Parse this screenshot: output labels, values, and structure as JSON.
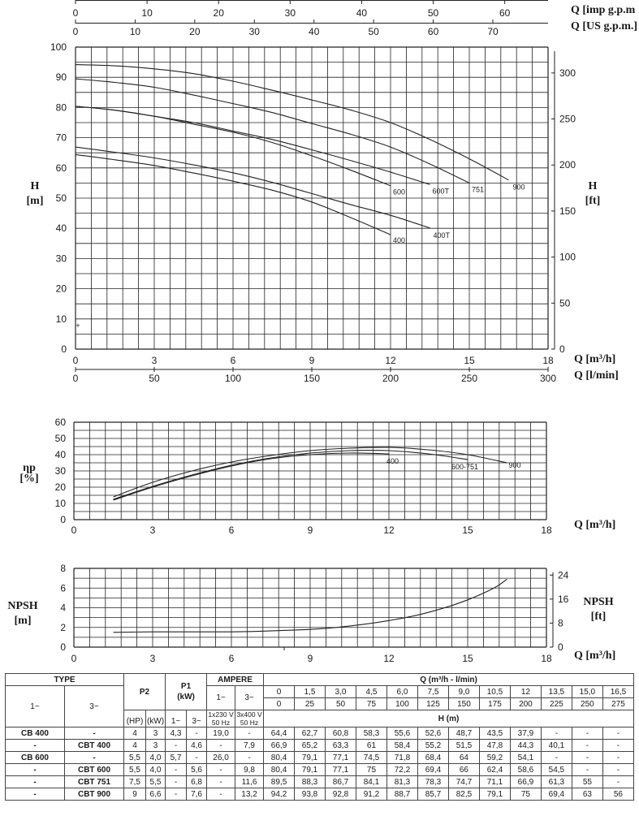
{
  "chart_data": [
    {
      "type": "line",
      "name": "head",
      "x_min": 0,
      "x_max": 18,
      "y_min": 0,
      "y_max": 100,
      "ylabel": "H",
      "ylabel_unit": "[m]",
      "yright_label": "H",
      "yright_unit": "[ft]",
      "top_axis_1": {
        "label": "Q [imp g.p.m",
        "ticks": [
          0,
          10,
          20,
          30,
          40,
          50,
          60
        ]
      },
      "top_axis_2": {
        "label": "Q [US g.p.m.]",
        "ticks": [
          0,
          10,
          20,
          30,
          40,
          50,
          60,
          70
        ]
      },
      "bottom_axis_1": {
        "label": "Q [m³/h]",
        "ticks": [
          0,
          3,
          6,
          9,
          12,
          15,
          18
        ]
      },
      "bottom_axis_2": {
        "label": "Q [l/min]",
        "ticks": [
          0,
          50,
          100,
          150,
          200,
          250,
          300
        ]
      },
      "yticks": [
        0,
        10,
        20,
        30,
        40,
        50,
        60,
        70,
        80,
        90,
        100
      ],
      "yright_ticks": [
        0,
        50,
        100,
        150,
        200,
        250,
        300
      ],
      "marker": "+",
      "series": [
        {
          "name": "400",
          "x": [
            0,
            1.5,
            3,
            4.5,
            6,
            7.5,
            9,
            10.5,
            12
          ],
          "y": [
            64.4,
            62.7,
            60.8,
            58.3,
            55.6,
            52.6,
            48.7,
            43.5,
            37.9
          ]
        },
        {
          "name": "400T",
          "x": [
            0,
            1.5,
            3,
            4.5,
            6,
            7.5,
            9,
            10.5,
            12,
            13.5
          ],
          "y": [
            66.9,
            65.2,
            63.3,
            61,
            58.4,
            55.2,
            51.5,
            47.8,
            44.3,
            40.1
          ]
        },
        {
          "name": "600",
          "x": [
            0,
            1.5,
            3,
            4.5,
            6,
            7.5,
            9,
            10.5,
            12
          ],
          "y": [
            80.4,
            79.1,
            77.1,
            74.5,
            71.8,
            68.4,
            64,
            59.2,
            54.1
          ]
        },
        {
          "name": "600T",
          "x": [
            0,
            1.5,
            3,
            4.5,
            6,
            7.5,
            9,
            10.5,
            12,
            13.5
          ],
          "y": [
            80.4,
            79.1,
            77.1,
            75,
            72.2,
            69.4,
            66,
            62.4,
            58.6,
            54.5
          ]
        },
        {
          "name": "751",
          "x": [
            0,
            1.5,
            3,
            4.5,
            6,
            7.5,
            9,
            10.5,
            12,
            13.5,
            15
          ],
          "y": [
            89.5,
            88.3,
            86.7,
            84.1,
            81.3,
            78.3,
            74.7,
            71.1,
            66.9,
            61.3,
            55
          ]
        },
        {
          "name": "900",
          "x": [
            0,
            1.5,
            3,
            4.5,
            6,
            7.5,
            9,
            10.5,
            12,
            13.5,
            15,
            16.5
          ],
          "y": [
            94.2,
            93.8,
            92.8,
            91.2,
            88.7,
            85.7,
            82.5,
            79.1,
            75,
            69.4,
            63,
            56
          ]
        }
      ]
    },
    {
      "type": "line",
      "name": "efficiency",
      "x_min": 0,
      "x_max": 18,
      "y_min": 0,
      "y_max": 60,
      "ylabel": "ηp",
      "ylabel_unit": "[%]",
      "xlabel": "Q [m³/h]",
      "xticks": [
        0,
        3,
        6,
        9,
        12,
        15,
        18
      ],
      "yticks": [
        0,
        10,
        20,
        30,
        40,
        50,
        60
      ],
      "series": [
        {
          "name": "400",
          "x": [
            1.5,
            3,
            4.5,
            6,
            7.5,
            9,
            10.5,
            12
          ],
          "y": [
            12,
            20,
            27,
            33,
            37.5,
            40,
            41,
            40.5
          ]
        },
        {
          "name": "600-751",
          "x": [
            1.5,
            3,
            4.5,
            6,
            7.5,
            9,
            10.5,
            12,
            13.5,
            15
          ],
          "y": [
            12.5,
            20.5,
            27.5,
            33.5,
            38,
            41,
            42.5,
            42.5,
            40.5,
            37
          ]
        },
        {
          "name": "900",
          "x": [
            1.5,
            3,
            4.5,
            6,
            7.5,
            9,
            10.5,
            12,
            13.5,
            15,
            16.5
          ],
          "y": [
            14,
            23,
            30,
            35.5,
            39.5,
            42.5,
            44,
            44.5,
            43,
            40,
            35
          ]
        }
      ]
    },
    {
      "type": "line",
      "name": "npsh",
      "x_min": 0,
      "x_max": 18,
      "y_min": 0,
      "y_max": 8,
      "ylabel": "NPSH",
      "ylabel_unit": "[m]",
      "yright_label": "NPSH",
      "yright_unit": "[ft]",
      "xlabel": "Q [m³/h]",
      "xticks": [
        0,
        3,
        6,
        9,
        12,
        15,
        18
      ],
      "yticks": [
        0,
        2,
        4,
        6,
        8
      ],
      "yright_ticks": [
        0,
        8,
        16,
        24
      ],
      "series": [
        {
          "name": "NPSH",
          "x": [
            1.5,
            3,
            4.5,
            6,
            7,
            8,
            9,
            10,
            11,
            12,
            13,
            14,
            15,
            16,
            16.5
          ],
          "y": [
            1.5,
            1.55,
            1.55,
            1.55,
            1.6,
            1.7,
            1.8,
            2.0,
            2.3,
            2.7,
            3.2,
            3.9,
            4.8,
            6.0,
            6.9
          ]
        }
      ]
    }
  ],
  "table": {
    "hdr_type": "TYPE",
    "hdr_p2": "P2",
    "hdr_p1": "P1",
    "hdr_p1_unit": "(kW)",
    "hdr_ampere": "AMPERE",
    "hdr_q": "Q (m³/h - l/min)",
    "hdr_1": "1~",
    "hdr_3": "3~",
    "hdr_p1_1": "1~",
    "hdr_p1_3": "3~",
    "hdr_amp_1": "1~",
    "hdr_amp_3": "3~",
    "hdr_amp_1_sub": "1x230 V 50 Hz",
    "hdr_amp_3_sub": "3x400 V 50 Hz",
    "hdr_hp": "(HP)",
    "hdr_kw": "(kW)",
    "hdr_h": "H (m)",
    "q_m3h": [
      "0",
      "1,5",
      "3,0",
      "4,5",
      "6,0",
      "7,5",
      "9,0",
      "10,5",
      "12",
      "13,5",
      "15,0",
      "16,5"
    ],
    "q_lmin": [
      "0",
      "25",
      "50",
      "75",
      "100",
      "125",
      "150",
      "175",
      "200",
      "225",
      "250",
      "275"
    ],
    "rows": [
      {
        "t1": "CB 400",
        "t3": "-",
        "hp": "4",
        "kw": "3",
        "p1_1": "4,3",
        "p1_3": "-",
        "a1": "19,0",
        "a3": "-",
        "h": [
          "64,4",
          "62,7",
          "60,8",
          "58,3",
          "55,6",
          "52,6",
          "48,7",
          "43,5",
          "37,9",
          "-",
          "-",
          "-"
        ]
      },
      {
        "t1": "-",
        "t3": "CBT 400",
        "hp": "4",
        "kw": "3",
        "p1_1": "-",
        "p1_3": "4,6",
        "a1": "-",
        "a3": "7,9",
        "h": [
          "66,9",
          "65,2",
          "63,3",
          "61",
          "58,4",
          "55,2",
          "51,5",
          "47,8",
          "44,3",
          "40,1",
          "-",
          "-"
        ]
      },
      {
        "t1": "CB 600",
        "t3": "-",
        "hp": "5,5",
        "kw": "4,0",
        "p1_1": "5,7",
        "p1_3": "-",
        "a1": "26,0",
        "a3": "-",
        "h": [
          "80,4",
          "79,1",
          "77,1",
          "74,5",
          "71,8",
          "68,4",
          "64",
          "59,2",
          "54,1",
          "-",
          "-",
          "-"
        ]
      },
      {
        "t1": "-",
        "t3": "CBT 600",
        "hp": "5,5",
        "kw": "4,0",
        "p1_1": "-",
        "p1_3": "5,6",
        "a1": "-",
        "a3": "9,8",
        "h": [
          "80,4",
          "79,1",
          "77,1",
          "75",
          "72,2",
          "69,4",
          "66",
          "62,4",
          "58,6",
          "54,5",
          "-",
          "-"
        ]
      },
      {
        "t1": "-",
        "t3": "CBT 751",
        "hp": "7,5",
        "kw": "5,5",
        "p1_1": "-",
        "p1_3": "6,8",
        "a1": "-",
        "a3": "11,6",
        "h": [
          "89,5",
          "88,3",
          "86,7",
          "84,1",
          "81,3",
          "78,3",
          "74,7",
          "71,1",
          "66,9",
          "61,3",
          "55",
          "-"
        ]
      },
      {
        "t1": "-",
        "t3": "CBT 900",
        "hp": "9",
        "kw": "6,6",
        "p1_1": "-",
        "p1_3": "7,6",
        "a1": "-",
        "a3": "13,2",
        "h": [
          "94,2",
          "93,8",
          "92,8",
          "91,2",
          "88,7",
          "85,7",
          "82,5",
          "79,1",
          "75",
          "69,4",
          "63",
          "56"
        ]
      }
    ]
  }
}
